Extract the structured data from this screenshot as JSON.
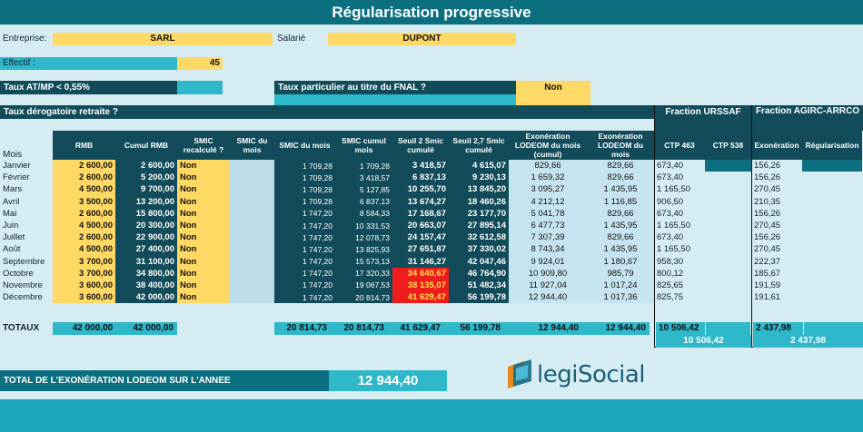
{
  "title": "Régularisation progressive",
  "entreprise": {
    "label": "Entreprise:",
    "value": "SARL"
  },
  "salarie": {
    "label": "Salarié",
    "value": "DUPONT"
  },
  "effectif": {
    "label": "Effectif :",
    "value": "45"
  },
  "taux_atmp": {
    "label": "Taux AT/MP < 0,55%"
  },
  "fnal": {
    "label": "Taux particulier au titre du FNAL ?",
    "value": "Non"
  },
  "retraite": {
    "label": "Taux dérogatoire retraite ?"
  },
  "group_headers": {
    "urssaf": "Fraction URSSAF",
    "agirc": "Fraction AGIRC-ARRCO"
  },
  "headers": [
    "Mois",
    "RMB",
    "Cumul RMB",
    "SMIC recalculé ?",
    "SMIC du mois",
    "SMIC du mois",
    "SMIC cumul mois",
    "Seuil 2 Smic cumulé",
    "Seuil 2,7 Smic cumulé",
    "Exonération LODEOM du mois (cumul)",
    "Exonération LODEOM du mois",
    "CTP 463",
    "CTP 538",
    "Exonération",
    "Régularisation"
  ],
  "rows": [
    {
      "mois": "Janvier",
      "rmb": "2 600,00",
      "cum": "2 600,00",
      "smic_rec": "Non",
      "smic_mois": "1 709,28",
      "smic_cum": "1 709,28",
      "s2": "3 418,57",
      "s27": "4 615,07",
      "exo_cum": "829,66",
      "exo": "829,66",
      "ctp463": "673,40",
      "agirc": "156,26",
      "red": false
    },
    {
      "mois": "Février",
      "rmb": "2 600,00",
      "cum": "5 200,00",
      "smic_rec": "Non",
      "smic_mois": "1 709,28",
      "smic_cum": "3 418,57",
      "s2": "6 837,13",
      "s27": "9 230,13",
      "exo_cum": "1 659,32",
      "exo": "829,66",
      "ctp463": "673,40",
      "agirc": "156,26",
      "red": false
    },
    {
      "mois": "Mars",
      "rmb": "4 500,00",
      "cum": "9 700,00",
      "smic_rec": "Non",
      "smic_mois": "1 709,28",
      "smic_cum": "5 127,85",
      "s2": "10 255,70",
      "s27": "13 845,20",
      "exo_cum": "3 095,27",
      "exo": "1 435,95",
      "ctp463": "1 165,50",
      "agirc": "270,45",
      "red": false
    },
    {
      "mois": "Avril",
      "rmb": "3 500,00",
      "cum": "13 200,00",
      "smic_rec": "Non",
      "smic_mois": "1 709,28",
      "smic_cum": "6 837,13",
      "s2": "13 674,27",
      "s27": "18 460,26",
      "exo_cum": "4 212,12",
      "exo": "1 116,85",
      "ctp463": "906,50",
      "agirc": "210,35",
      "red": false
    },
    {
      "mois": "Mai",
      "rmb": "2 600,00",
      "cum": "15 800,00",
      "smic_rec": "Non",
      "smic_mois": "1 747,20",
      "smic_cum": "8 584,33",
      "s2": "17 168,67",
      "s27": "23 177,70",
      "exo_cum": "5 041,78",
      "exo": "829,66",
      "ctp463": "673,40",
      "agirc": "156,26",
      "red": false
    },
    {
      "mois": "Juin",
      "rmb": "4 500,00",
      "cum": "20 300,00",
      "smic_rec": "Non",
      "smic_mois": "1 747,20",
      "smic_cum": "10 331,53",
      "s2": "20 663,07",
      "s27": "27 895,14",
      "exo_cum": "6 477,73",
      "exo": "1 435,95",
      "ctp463": "1 165,50",
      "agirc": "270,45",
      "red": false
    },
    {
      "mois": "Juillet",
      "rmb": "2 600,00",
      "cum": "22 900,00",
      "smic_rec": "Non",
      "smic_mois": "1 747,20",
      "smic_cum": "12 078,73",
      "s2": "24 157,47",
      "s27": "32 612,58",
      "exo_cum": "7 307,39",
      "exo": "829,66",
      "ctp463": "673,40",
      "agirc": "156,26",
      "red": false
    },
    {
      "mois": "Août",
      "rmb": "4 500,00",
      "cum": "27 400,00",
      "smic_rec": "Non",
      "smic_mois": "1 747,20",
      "smic_cum": "13 825,93",
      "s2": "27 651,87",
      "s27": "37 330,02",
      "exo_cum": "8 743,34",
      "exo": "1 435,95",
      "ctp463": "1 165,50",
      "agirc": "270,45",
      "red": false
    },
    {
      "mois": "Septembre",
      "rmb": "3 700,00",
      "cum": "31 100,00",
      "smic_rec": "Non",
      "smic_mois": "1 747,20",
      "smic_cum": "15 573,13",
      "s2": "31 146,27",
      "s27": "42 047,46",
      "exo_cum": "9 924,01",
      "exo": "1 180,67",
      "ctp463": "958,30",
      "agirc": "222,37",
      "red": false
    },
    {
      "mois": "Octobre",
      "rmb": "3 700,00",
      "cum": "34 800,00",
      "smic_rec": "Non",
      "smic_mois": "1 747,20",
      "smic_cum": "17 320,33",
      "s2": "34 640,67",
      "s27": "46 764,90",
      "exo_cum": "10 909,80",
      "exo": "985,79",
      "ctp463": "800,12",
      "agirc": "185,67",
      "red": true
    },
    {
      "mois": "Novembre",
      "rmb": "3 600,00",
      "cum": "38 400,00",
      "smic_rec": "Non",
      "smic_mois": "1 747,20",
      "smic_cum": "19 067,53",
      "s2": "38 135,07",
      "s27": "51 482,34",
      "exo_cum": "11 927,04",
      "exo": "1 017,24",
      "ctp463": "825,65",
      "agirc": "191,59",
      "red": true
    },
    {
      "mois": "Décembre",
      "rmb": "3 600,00",
      "cum": "42 000,00",
      "smic_rec": "Non",
      "smic_mois": "1 747,20",
      "smic_cum": "20 814,73",
      "s2": "41 629,47",
      "s27": "56 199,78",
      "exo_cum": "12 944,40",
      "exo": "1 017,36",
      "ctp463": "825,75",
      "agirc": "191,61",
      "red": true
    }
  ],
  "totaux": {
    "label": "TOTAUX",
    "rmb": "42 000,00",
    "cum": "42 000,00",
    "smic_mois": "20 814,73",
    "smic_cum": "20 814,73",
    "s2": "41 629,47",
    "s27": "56 199,78",
    "exo_cum": "12 944,40",
    "exo": "12 944,40",
    "ctp463": "10 506,42",
    "agirc": "2 437,98",
    "urssaf_sum": "10 506,42",
    "agirc_sum": "2 437,98"
  },
  "total_annee": {
    "label": "TOTAL DE L'EXONÉRATION LODEOM SUR L'ANNEE",
    "value": "12 944,40"
  },
  "logo": {
    "text": "legiSocial"
  }
}
